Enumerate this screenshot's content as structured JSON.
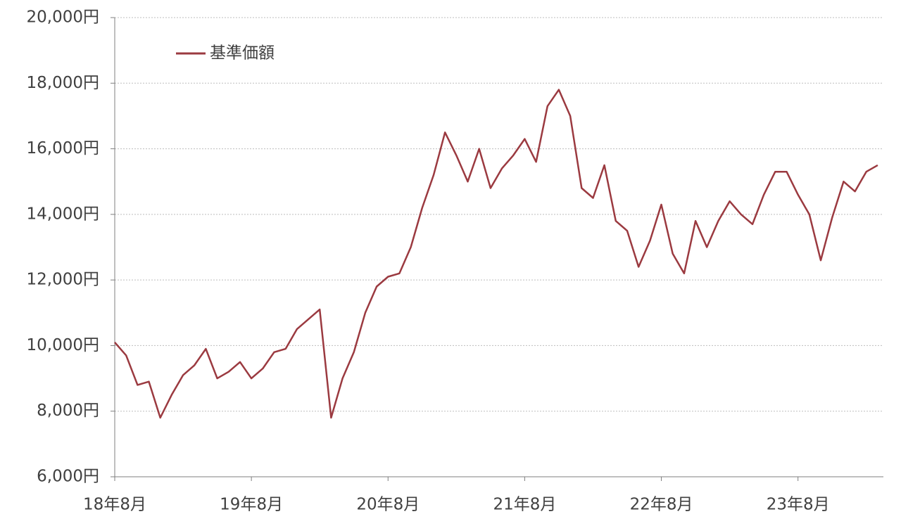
{
  "chart_data": {
    "type": "line",
    "categories": [
      "18年8月",
      null,
      null,
      null,
      null,
      null,
      null,
      null,
      null,
      null,
      null,
      null,
      "19年8月",
      null,
      null,
      null,
      null,
      null,
      null,
      null,
      null,
      null,
      null,
      null,
      "20年8月",
      null,
      null,
      null,
      null,
      null,
      null,
      null,
      null,
      null,
      null,
      null,
      "21年8月",
      null,
      null,
      null,
      null,
      null,
      null,
      null,
      null,
      null,
      null,
      null,
      "22年8月",
      null,
      null,
      null,
      null,
      null,
      null,
      null,
      null,
      null,
      null,
      null,
      "23年8月",
      null,
      null,
      null,
      null,
      null,
      null,
      null
    ],
    "series": [
      {
        "name": "基準価額",
        "color": "#9b3a40",
        "values": [
          10100,
          9700,
          8800,
          8900,
          7800,
          8500,
          9100,
          9400,
          9900,
          9000,
          9200,
          9500,
          9000,
          9300,
          9800,
          9900,
          10500,
          10800,
          11100,
          7800,
          9000,
          9800,
          11000,
          11800,
          12100,
          12200,
          13000,
          14200,
          15200,
          16500,
          15800,
          15000,
          16000,
          14800,
          15400,
          15800,
          16300,
          15600,
          17300,
          17800,
          17000,
          14800,
          14500,
          15500,
          13800,
          13500,
          12400,
          13200,
          14300,
          12800,
          12200,
          13800,
          13000,
          13800,
          14400,
          14000,
          13700,
          14600,
          15300,
          15300,
          14600,
          14000,
          12600,
          13900,
          15000,
          14700,
          15300,
          15500
        ]
      }
    ],
    "ylim": [
      6000,
      20000
    ],
    "yticks": [
      {
        "value": 6000,
        "label": "6,000円"
      },
      {
        "value": 8000,
        "label": "8,000円"
      },
      {
        "value": 10000,
        "label": "10,000円"
      },
      {
        "value": 12000,
        "label": "12,000円"
      },
      {
        "value": 14000,
        "label": "14,000円"
      },
      {
        "value": 16000,
        "label": "16,000円"
      },
      {
        "value": 18000,
        "label": "18,000円"
      },
      {
        "value": 20000,
        "label": "20,000円"
      }
    ],
    "grid": true,
    "legend": "upper left"
  }
}
